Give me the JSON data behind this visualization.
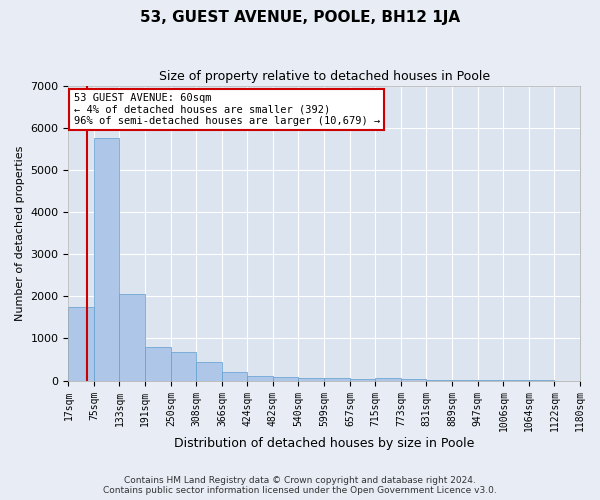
{
  "title": "53, GUEST AVENUE, POOLE, BH12 1JA",
  "subtitle": "Size of property relative to detached houses in Poole",
  "xlabel": "Distribution of detached houses by size in Poole",
  "ylabel": "Number of detached properties",
  "annotation_line1": "53 GUEST AVENUE: 60sqm",
  "annotation_line2": "← 4% of detached houses are smaller (392)",
  "annotation_line3": "96% of semi-detached houses are larger (10,679) →",
  "footer_line1": "Contains HM Land Registry data © Crown copyright and database right 2024.",
  "footer_line2": "Contains public sector information licensed under the Open Government Licence v3.0.",
  "bar_edges": [
    17,
    75,
    133,
    191,
    250,
    308,
    366,
    424,
    482,
    540,
    599,
    657,
    715,
    773,
    831,
    889,
    947,
    1006,
    1064,
    1122,
    1180
  ],
  "bar_heights": [
    1750,
    5750,
    2050,
    800,
    680,
    450,
    200,
    120,
    90,
    65,
    55,
    45,
    65,
    35,
    10,
    7,
    5,
    5,
    3,
    2
  ],
  "bar_color": "#aec6e8",
  "bar_edge_color": "#5f9ed1",
  "property_size": 60,
  "property_line_color": "#cc0000",
  "annotation_box_color": "#ffffff",
  "annotation_box_edge": "#cc0000",
  "background_color": "#e8edf5",
  "plot_bg_color": "#dce4f0",
  "grid_color": "#ffffff",
  "ylim": [
    0,
    7000
  ],
  "yticks": [
    0,
    1000,
    2000,
    3000,
    4000,
    5000,
    6000,
    7000
  ]
}
